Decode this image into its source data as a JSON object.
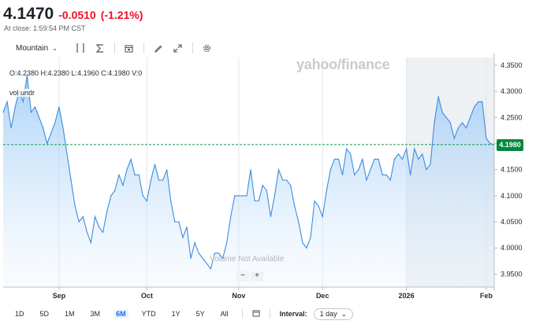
{
  "quote": {
    "price": "4.1470",
    "change": "-0.0510",
    "change_pct": "(-1.21%)",
    "close_time": "At close: 1:59:54 PM CST"
  },
  "toolbar": {
    "chart_type": "Mountain",
    "icons": [
      "compare-icon",
      "indicators-icon",
      "calendar-event-icon",
      "draw-icon",
      "fullscreen-icon",
      "settings-icon"
    ]
  },
  "overlay": {
    "ohlc": "O:4.2380  H:4.2380  L:4.1960  C:4.1980  V:0",
    "vol_tag": "vol undr",
    "watermark": "yahoo/finance",
    "volume_na": "Volume Not Available",
    "zoom_out": "−",
    "zoom_in": "+"
  },
  "last_price_badge": "4.1980",
  "chart_data": {
    "type": "area",
    "title": "",
    "xlabel": "",
    "ylabel": "",
    "ylim": [
      3.925,
      4.365
    ],
    "yticks": [
      "4.3500",
      "4.3000",
      "4.2500",
      "4.2000",
      "4.1500",
      "4.1000",
      "4.0500",
      "4.0000",
      "3.9500"
    ],
    "ytick_values": [
      4.35,
      4.3,
      4.25,
      4.2,
      4.15,
      4.1,
      4.05,
      4.0,
      3.95
    ],
    "xticks": [
      "Sep",
      "Oct",
      "Nov",
      "Dec",
      "2026",
      "Feb"
    ],
    "xtick_index": [
      14,
      36,
      59,
      80,
      101,
      121
    ],
    "shaded_from_index": 101,
    "last_value": 4.198,
    "series": [
      {
        "values": [
          4.26,
          4.28,
          4.23,
          4.27,
          4.3,
          4.28,
          4.33,
          4.26,
          4.27,
          4.25,
          4.23,
          4.2,
          4.22,
          4.24,
          4.27,
          4.23,
          4.18,
          4.13,
          4.08,
          4.05,
          4.06,
          4.03,
          4.01,
          4.06,
          4.04,
          4.03,
          4.07,
          4.1,
          4.11,
          4.14,
          4.12,
          4.15,
          4.17,
          4.14,
          4.14,
          4.1,
          4.09,
          4.13,
          4.16,
          4.13,
          4.13,
          4.15,
          4.09,
          4.05,
          4.05,
          4.02,
          4.04,
          3.98,
          4.01,
          3.99,
          3.98,
          3.97,
          3.96,
          3.99,
          3.99,
          3.98,
          4.01,
          4.06,
          4.1,
          4.1,
          4.1,
          4.1,
          4.15,
          4.09,
          4.09,
          4.12,
          4.11,
          4.06,
          4.1,
          4.15,
          4.13,
          4.13,
          4.12,
          4.08,
          4.05,
          4.01,
          4.0,
          4.02,
          4.09,
          4.08,
          4.06,
          4.11,
          4.15,
          4.17,
          4.17,
          4.14,
          4.19,
          4.18,
          4.14,
          4.15,
          4.17,
          4.13,
          4.15,
          4.17,
          4.17,
          4.14,
          4.14,
          4.13,
          4.17,
          4.18,
          4.17,
          4.19,
          4.14,
          4.19,
          4.17,
          4.18,
          4.15,
          4.16,
          4.24,
          4.29,
          4.26,
          4.25,
          4.24,
          4.21,
          4.23,
          4.24,
          4.23,
          4.25,
          4.27,
          4.28,
          4.28,
          4.21,
          4.2,
          4.198
        ]
      }
    ]
  },
  "bottombar": {
    "ranges": [
      "1D",
      "5D",
      "1M",
      "3M",
      "6M",
      "YTD",
      "1Y",
      "5Y",
      "All"
    ],
    "active_range": "6M",
    "interval_label": "Interval:",
    "interval_value": "1 day"
  }
}
